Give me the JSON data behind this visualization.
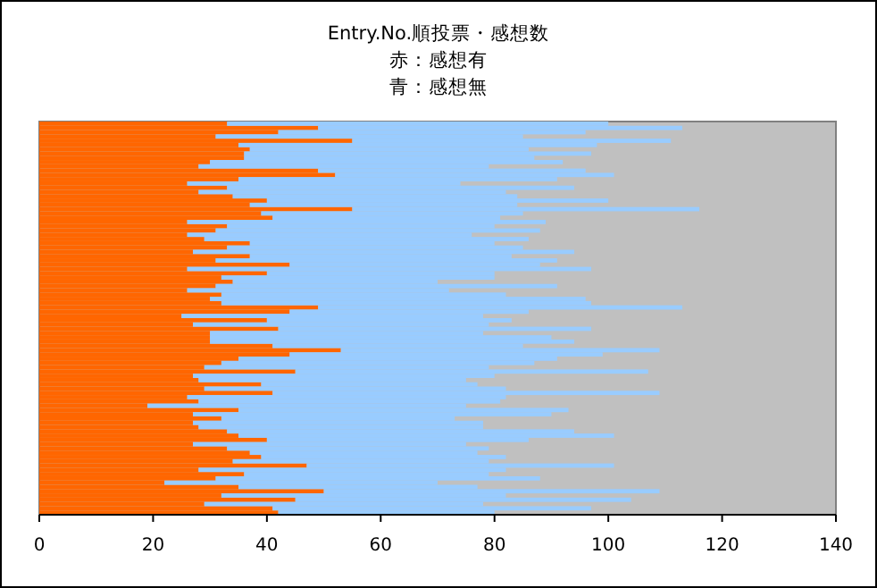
{
  "chart_data": {
    "type": "bar",
    "orientation": "horizontal",
    "stacked": true,
    "title": "Entry.No.順投票・感想数",
    "subtitle": "赤：感想有",
    "annotations": [
      "青：感想無"
    ],
    "categories": [
      null,
      null,
      null,
      null,
      null,
      null,
      null,
      null,
      null,
      null,
      null,
      null,
      null,
      null,
      null,
      null,
      null,
      null,
      null,
      null,
      null,
      null,
      null,
      null,
      null,
      null,
      null,
      null,
      null,
      null,
      null,
      null,
      null,
      null,
      null,
      null,
      null,
      null,
      null,
      null,
      null,
      null,
      null,
      null,
      null,
      null,
      null,
      null,
      null,
      null,
      null,
      null,
      null,
      null,
      null,
      null,
      null,
      null,
      null,
      null,
      null,
      null,
      null,
      null,
      null,
      null,
      null,
      null,
      null,
      null,
      null,
      null,
      null,
      null,
      null,
      null,
      null,
      null,
      null,
      null,
      null,
      null,
      null,
      null,
      null,
      null,
      null,
      null,
      null,
      null,
      null,
      null
    ],
    "series": [
      {
        "color": "#ff6600",
        "values": [
          33,
          49,
          42,
          31,
          55,
          35,
          37,
          36,
          36,
          30,
          28,
          49,
          52,
          35,
          26,
          33,
          28,
          34,
          40,
          37,
          55,
          39,
          41,
          26,
          33,
          31,
          26,
          29,
          37,
          33,
          27,
          37,
          31,
          44,
          26,
          40,
          32,
          34,
          31,
          26,
          32,
          30,
          32,
          49,
          44,
          25,
          40,
          27,
          42,
          30,
          30,
          30,
          41,
          53,
          44,
          35,
          32,
          29,
          45,
          27,
          28,
          39,
          29,
          41,
          26,
          28,
          19,
          35,
          27,
          32,
          27,
          28,
          33,
          35,
          40,
          27,
          33,
          37,
          39,
          34,
          47,
          28,
          36,
          31,
          22,
          35,
          50,
          32,
          45,
          29,
          41,
          42
        ]
      },
      {
        "color": "#99ccff",
        "values": [
          67,
          64,
          54,
          54,
          56,
          63,
          49,
          61,
          51,
          62,
          51,
          47,
          49,
          56,
          48,
          61,
          54,
          50,
          60,
          47,
          61,
          46,
          40,
          63,
          47,
          57,
          50,
          57,
          43,
          52,
          67,
          46,
          60,
          44,
          71,
          40,
          48,
          36,
          60,
          46,
          50,
          66,
          65,
          64,
          42,
          53,
          43,
          52,
          55,
          48,
          60,
          64,
          44,
          56,
          55,
          56,
          55,
          50,
          62,
          53,
          47,
          38,
          53,
          68,
          56,
          53,
          56,
          58,
          63,
          41,
          51,
          50,
          61,
          66,
          46,
          48,
          46,
          40,
          43,
          45,
          54,
          54,
          43,
          57,
          48,
          42,
          59,
          50,
          59,
          49,
          56,
          38
        ]
      }
    ],
    "xlim": [
      0,
      140
    ],
    "xticks": [
      0,
      20,
      40,
      60,
      80,
      100,
      120,
      140
    ],
    "grid": false
  }
}
